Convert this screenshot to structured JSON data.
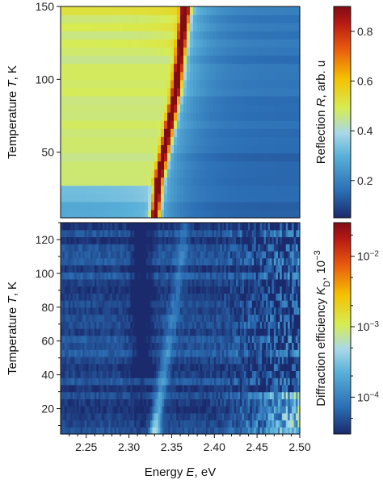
{
  "chart_data": [
    {
      "type": "heatmap",
      "panel": "top",
      "x_range": [
        2.22,
        2.5
      ],
      "ylim": [
        5,
        150
      ],
      "ylabel_prefix": "Temperature ",
      "ylabel_var": "T",
      "ylabel_suffix": ", K",
      "yticks": [
        {
          "value": 50,
          "label": "50"
        },
        {
          "value": 100,
          "label": "100"
        },
        {
          "value": 150,
          "label": "150"
        }
      ],
      "colorbar": {
        "scale": "linear",
        "range": [
          0.05,
          0.9
        ],
        "label_prefix": "Reflection ",
        "label_var": "R",
        "label_suffix": ", arb. u",
        "ticks": [
          {
            "value": 0.2,
            "label": "0.2"
          },
          {
            "value": 0.4,
            "label": "0.4"
          },
          {
            "value": 0.6,
            "label": "0.6"
          },
          {
            "value": 0.8,
            "label": "0.8"
          }
        ]
      },
      "peak_energy_vs_temperature": [
        [
          5,
          2.327
        ],
        [
          30,
          2.332
        ],
        [
          60,
          2.342
        ],
        [
          90,
          2.352
        ],
        [
          120,
          2.358
        ],
        [
          140,
          2.362
        ],
        [
          150,
          2.364
        ]
      ],
      "colors": [
        "#1a2a6c",
        "#2c6fb5",
        "#58b0d8",
        "#a8d8e8",
        "#d7ec52",
        "#f5c000",
        "#e85a10",
        "#b81a14",
        "#800c14"
      ]
    },
    {
      "type": "heatmap",
      "panel": "bottom",
      "xlim": [
        2.22,
        2.5
      ],
      "ylim": [
        5,
        130
      ],
      "xlabel_prefix": "Energy ",
      "xlabel_var": "E",
      "xlabel_suffix": ", eV",
      "ylabel_prefix": "Temperature ",
      "ylabel_var": "T",
      "ylabel_suffix": ", K",
      "xticks": [
        {
          "value": 2.25,
          "label": "2.25"
        },
        {
          "value": 2.3,
          "label": "2.30"
        },
        {
          "value": 2.35,
          "label": "2.35"
        },
        {
          "value": 2.4,
          "label": "2.40"
        },
        {
          "value": 2.45,
          "label": "2.45"
        },
        {
          "value": 2.5,
          "label": "2.50"
        }
      ],
      "yticks": [
        {
          "value": 20,
          "label": "20"
        },
        {
          "value": 40,
          "label": "40"
        },
        {
          "value": 60,
          "label": "60"
        },
        {
          "value": 80,
          "label": "80"
        },
        {
          "value": 100,
          "label": "100"
        },
        {
          "value": 120,
          "label": "120"
        }
      ],
      "colorbar": {
        "scale": "log",
        "range": [
          3e-05,
          0.03
        ],
        "label_prefix": "Diffraction efficiency ",
        "label_var": "K",
        "label_sub": "D",
        "label_suffix": ", 10",
        "label_sup": "−3",
        "ticks": [
          {
            "value": 0.0001,
            "label_base": "10",
            "label_exp": "−4"
          },
          {
            "value": 0.001,
            "label_base": "10",
            "label_exp": "−3"
          },
          {
            "value": 0.01,
            "label_base": "10",
            "label_exp": "−2"
          }
        ]
      },
      "peak_energy_vs_temperature": [
        [
          5,
          2.322
        ],
        [
          30,
          2.329
        ],
        [
          60,
          2.339
        ],
        [
          90,
          2.349
        ],
        [
          120,
          2.356
        ],
        [
          130,
          2.358
        ]
      ]
    }
  ]
}
